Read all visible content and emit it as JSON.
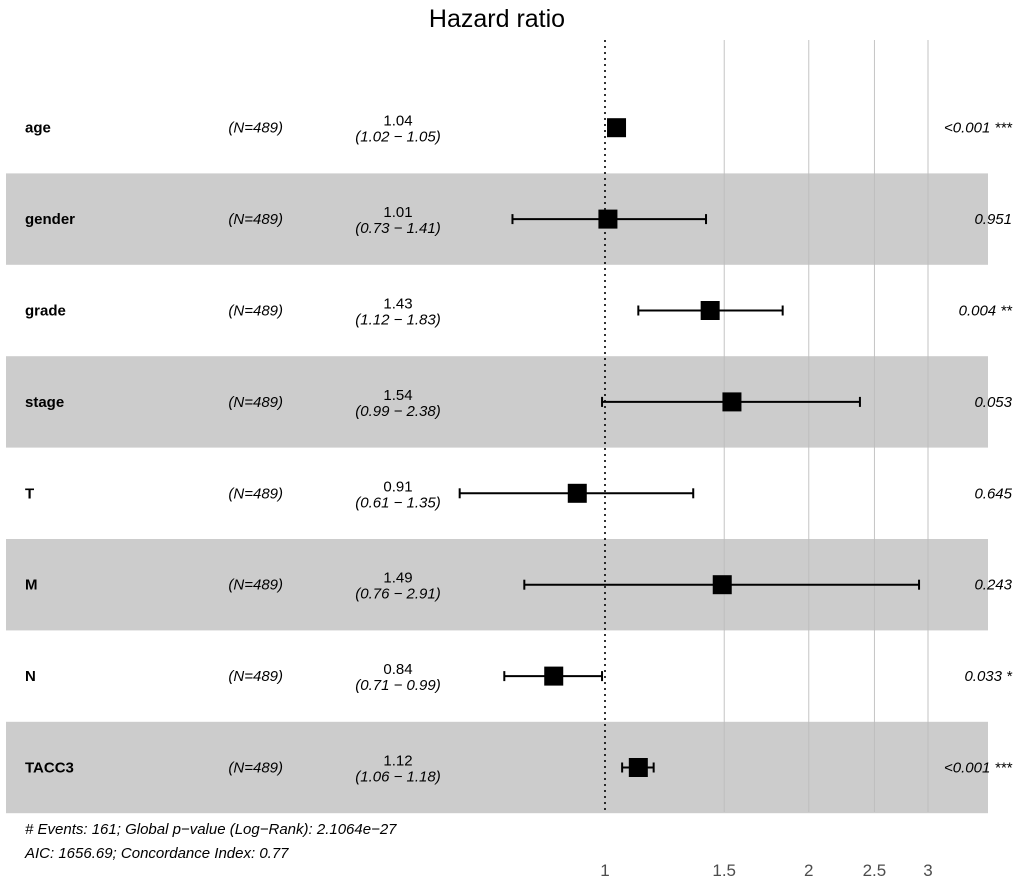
{
  "chart_data": {
    "type": "forest",
    "title": "Hazard ratio",
    "x_scale": "log",
    "xlim": [
      0.63,
      3.4
    ],
    "x_ticks": [
      1,
      1.5,
      2,
      2.5,
      3
    ],
    "x_tick_labels": [
      "1",
      "1.5",
      "2",
      "2.5",
      "3"
    ],
    "reference_line": 1,
    "rows": [
      {
        "variable": "age",
        "n": "(N=489)",
        "hr": 1.04,
        "hr_label": "1.04",
        "ci_lower": 1.02,
        "ci_upper": 1.05,
        "ci_label": "(1.02 − 1.05)",
        "p_label": "<0.001 ***",
        "shaded": false
      },
      {
        "variable": "gender",
        "n": "(N=489)",
        "hr": 1.01,
        "hr_label": "1.01",
        "ci_lower": 0.73,
        "ci_upper": 1.41,
        "ci_label": "(0.73 − 1.41)",
        "p_label": "0.951",
        "shaded": true
      },
      {
        "variable": "grade",
        "n": "(N=489)",
        "hr": 1.43,
        "hr_label": "1.43",
        "ci_lower": 1.12,
        "ci_upper": 1.83,
        "ci_label": "(1.12 − 1.83)",
        "p_label": "0.004 **",
        "shaded": false
      },
      {
        "variable": "stage",
        "n": "(N=489)",
        "hr": 1.54,
        "hr_label": "1.54",
        "ci_lower": 0.99,
        "ci_upper": 2.38,
        "ci_label": "(0.99 − 2.38)",
        "p_label": "0.053",
        "shaded": true
      },
      {
        "variable": "T",
        "n": "(N=489)",
        "hr": 0.91,
        "hr_label": "0.91",
        "ci_lower": 0.61,
        "ci_upper": 1.35,
        "ci_label": "(0.61 − 1.35)",
        "p_label": "0.645",
        "shaded": false
      },
      {
        "variable": "M",
        "n": "(N=489)",
        "hr": 1.49,
        "hr_label": "1.49",
        "ci_lower": 0.76,
        "ci_upper": 2.91,
        "ci_label": "(0.76 − 2.91)",
        "p_label": "0.243",
        "shaded": true
      },
      {
        "variable": "N",
        "n": "(N=489)",
        "hr": 0.84,
        "hr_label": "0.84",
        "ci_lower": 0.71,
        "ci_upper": 0.99,
        "ci_label": "(0.71 − 0.99)",
        "p_label": "0.033 *",
        "shaded": false
      },
      {
        "variable": "TACC3",
        "n": "(N=489)",
        "hr": 1.12,
        "hr_label": "1.12",
        "ci_lower": 1.06,
        "ci_upper": 1.18,
        "ci_label": "(1.06 − 1.18)",
        "p_label": "<0.001 ***",
        "shaded": true
      }
    ],
    "footnotes": [
      "# Events: 161; Global p−value (Log−Rank): 2.1064e−27",
      "AIC: 1656.69; Concordance Index: 0.77"
    ]
  },
  "colors": {
    "shade": "#cccccc",
    "grid": "#bdbdbd",
    "marker": "#000000",
    "tick_text": "#4d4d4d"
  }
}
